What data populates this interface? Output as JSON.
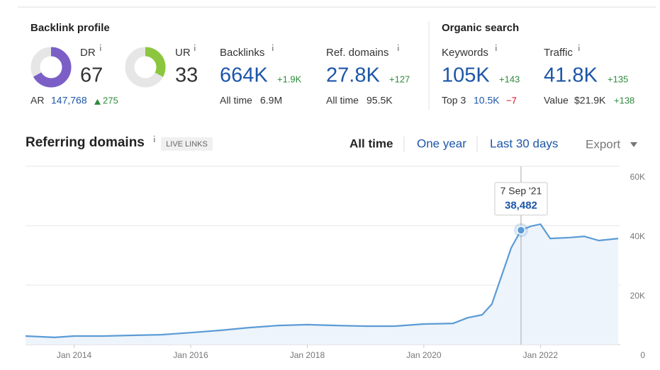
{
  "metrics": {
    "backlink_profile": {
      "title": "Backlink profile",
      "gauge_range": [
        0,
        100
      ],
      "dr": {
        "label": "DR",
        "value": 67,
        "color": "#7b5fc7"
      },
      "ur": {
        "label": "UR",
        "value": 33,
        "color": "#8cc63e"
      },
      "ar": {
        "label": "AR",
        "value": "147,768",
        "change": "275"
      },
      "backlinks": {
        "label": "Backlinks",
        "value": "664K",
        "change": "+1.9K",
        "sub_label": "All time",
        "sub_value": "6.9M"
      },
      "ref_domains": {
        "label": "Ref. domains",
        "value": "27.8K",
        "change": "+127",
        "sub_label": "All time",
        "sub_value": "95.5K"
      }
    },
    "organic_search": {
      "title": "Organic search",
      "keywords": {
        "label": "Keywords",
        "value": "105K",
        "change": "+143",
        "sub_label": "Top 3",
        "sub_value": "10.5K",
        "sub_change": "−7"
      },
      "traffic": {
        "label": "Traffic",
        "value": "41.8K",
        "change": "+135",
        "sub_label": "Value",
        "sub_value": "$21.9K",
        "sub_change": "+138"
      }
    }
  },
  "chart_header": {
    "badge": "LIVE LINKS",
    "tabs": [
      {
        "label": "All time",
        "active": true
      },
      {
        "label": "One year",
        "active": false
      },
      {
        "label": "Last 30 days",
        "active": false
      }
    ],
    "export": "Export"
  },
  "chart_data": {
    "type": "line",
    "title": "Referring domains",
    "x": [
      "2013-03",
      "2013-09",
      "2014-01",
      "2014-07",
      "2015-01",
      "2015-07",
      "2016-01",
      "2016-07",
      "2017-01",
      "2017-07",
      "2018-01",
      "2018-07",
      "2019-01",
      "2019-07",
      "2020-01",
      "2020-07",
      "2020-10",
      "2021-01",
      "2021-03",
      "2021-05",
      "2021-07",
      "2021-09",
      "2021-11",
      "2022-01",
      "2022-03",
      "2022-07",
      "2022-10",
      "2023-01",
      "2023-05"
    ],
    "values": [
      2860,
      2400,
      2860,
      2860,
      3100,
      3300,
      4000,
      4760,
      5700,
      6400,
      6700,
      6400,
      6200,
      6200,
      6900,
      7100,
      9000,
      10000,
      13600,
      23100,
      32600,
      38482,
      39800,
      40500,
      35700,
      36000,
      36400,
      35000,
      35700
    ],
    "color": "#5b9bd5",
    "area_color": "#eef4fb",
    "xlim": [
      "2013-03",
      "2023-05"
    ],
    "xticks": [
      {
        "value": "2014-01",
        "label": "Jan 2014"
      },
      {
        "value": "2016-01",
        "label": "Jan 2016"
      },
      {
        "value": "2018-01",
        "label": "Jan 2018"
      },
      {
        "value": "2020-01",
        "label": "Jan 2020"
      },
      {
        "value": "2022-01",
        "label": "Jan 2022"
      }
    ],
    "ylim": [
      0,
      60000
    ],
    "yticks": [
      0,
      {
        "value": 20000,
        "label": "20K"
      },
      {
        "value": 40000,
        "label": "40K"
      },
      {
        "value": 60000,
        "label": "60K"
      }
    ],
    "grid": true,
    "annotation": {
      "x": "2021-09",
      "value": 38482,
      "date_label": "7 Sep '21",
      "value_label": "38,482"
    }
  }
}
